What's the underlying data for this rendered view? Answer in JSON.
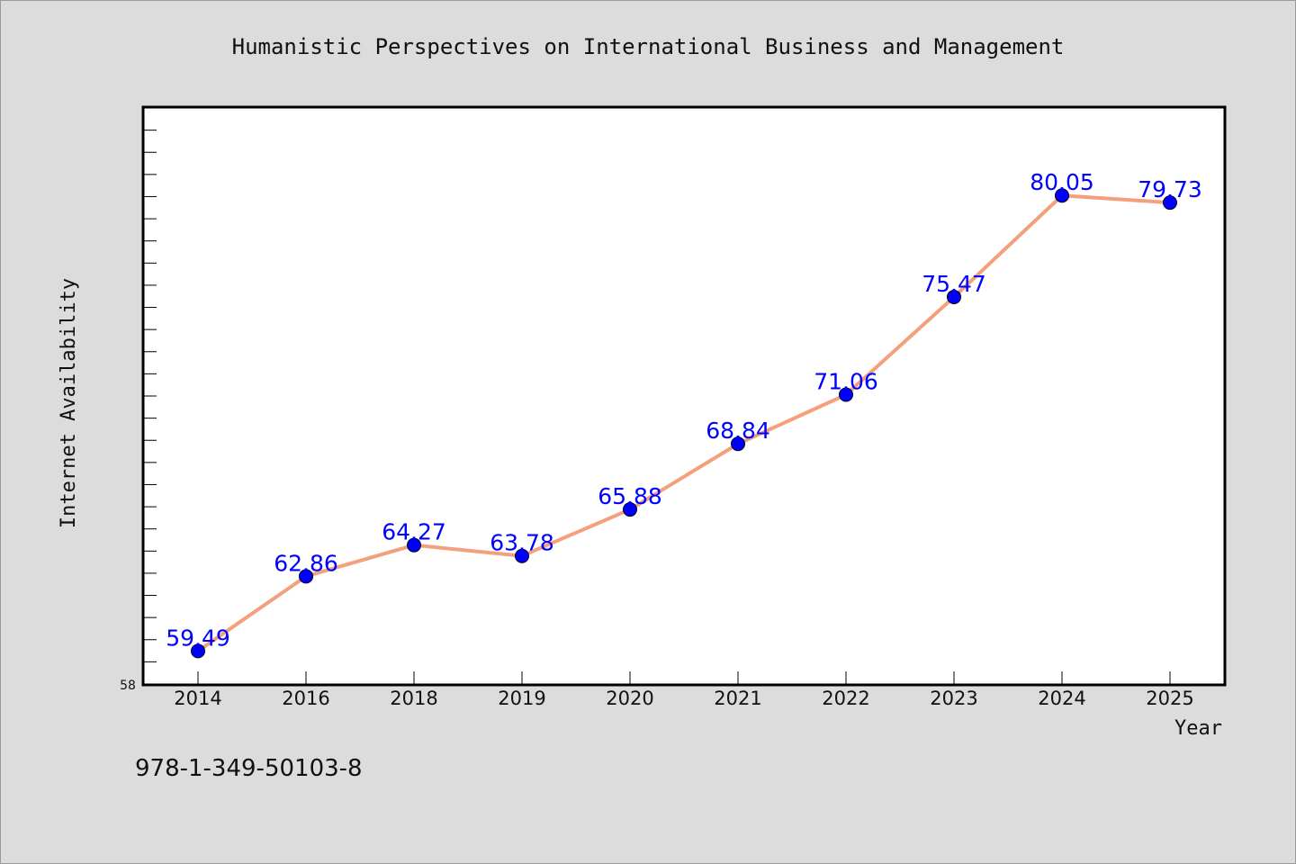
{
  "chart_data": {
    "type": "line",
    "title": "Humanistic Perspectives on International Business and Management",
    "xlabel": "Year",
    "ylabel": "Internet Availability",
    "categories": [
      "2014",
      "2016",
      "2018",
      "2019",
      "2020",
      "2021",
      "2022",
      "2023",
      "2024",
      "2025"
    ],
    "values": [
      59.49,
      62.86,
      64.27,
      63.78,
      65.88,
      68.84,
      71.06,
      75.47,
      80.05,
      79.73
    ],
    "data_labels": [
      "59.49",
      "62.86",
      "64.27",
      "63.78",
      "65.88",
      "68.84",
      "71.06",
      "75.47",
      "80.05",
      "79.73"
    ],
    "ylim": [
      58,
      84
    ],
    "y_tick_label": "58",
    "line_color": "#f4a07c",
    "marker_color": "#0000ff",
    "data_label_color": "#0000ff",
    "grid": false,
    "legend": "none"
  },
  "footer": {
    "isbn": "978-1-349-50103-8"
  }
}
